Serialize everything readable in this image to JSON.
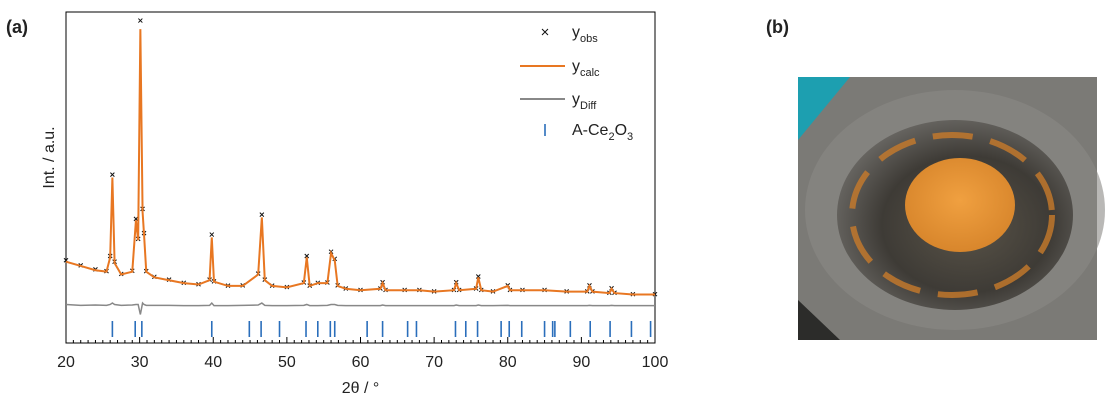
{
  "panel_a": {
    "label": "(a)"
  },
  "panel_b": {
    "label": "(b)"
  },
  "chart_data": {
    "type": "line",
    "xlabel": "2θ / °",
    "ylabel": "Int. / a.u.",
    "xlim": [
      20,
      100
    ],
    "ylim": [
      -16,
      100
    ],
    "xticks": [
      20,
      30,
      40,
      50,
      60,
      70,
      80,
      90,
      100
    ],
    "legend": "upper right",
    "x": [
      20,
      22,
      24,
      25.5,
      26.0,
      26.3,
      26.6,
      27.5,
      29.0,
      29.5,
      29.8,
      30.1,
      30.4,
      30.6,
      30.9,
      32,
      34,
      36,
      38,
      39.5,
      39.8,
      40.1,
      42,
      44,
      46.1,
      46.6,
      47.0,
      48,
      50,
      52.3,
      52.7,
      53.1,
      54.2,
      55.5,
      56.0,
      56.5,
      56.9,
      58,
      60,
      62.7,
      63.0,
      63.4,
      66,
      68,
      70,
      72.7,
      73.0,
      73.4,
      75.7,
      76.0,
      76.4,
      78,
      80.0,
      80.3,
      82,
      85,
      88,
      90.8,
      91.1,
      91.5,
      93.8,
      94.1,
      94.5,
      97,
      100
    ],
    "series": [
      {
        "name": [
          "y",
          "obs"
        ],
        "color": "#111111",
        "marker": "x",
        "values": [
          13,
          11.2,
          9.8,
          9.2,
          14.5,
          43,
          12.5,
          8.2,
          9.3,
          27.5,
          20.5,
          97,
          31,
          22.5,
          9.2,
          7.2,
          6.2,
          5.1,
          4.6,
          6.2,
          22,
          5.6,
          4.1,
          4.2,
          8.3,
          29,
          6.2,
          4.1,
          3.6,
          5.2,
          14.5,
          4.1,
          5.1,
          5.2,
          16,
          13.5,
          4.2,
          3.1,
          2.6,
          3.1,
          5.3,
          2.6,
          2.6,
          2.6,
          2.1,
          2.6,
          5.3,
          2.6,
          3.1,
          7.3,
          2.6,
          2.1,
          4.2,
          2.6,
          2.6,
          2.6,
          2.1,
          2.1,
          4.2,
          2.1,
          1.6,
          3.2,
          1.6,
          1.1,
          1.1
        ]
      },
      {
        "name": [
          "y",
          "calc"
        ],
        "color": "#e87722",
        "values": [
          12.5,
          11,
          9.5,
          9,
          14,
          42,
          12,
          8,
          9,
          27,
          20,
          94,
          30,
          22,
          9,
          7,
          6,
          5,
          4.5,
          6,
          21,
          5.5,
          4,
          4,
          8,
          28,
          6,
          4,
          3.5,
          5,
          14,
          4,
          5,
          5,
          15.5,
          13,
          4,
          3,
          2.5,
          3,
          5,
          2.5,
          2.5,
          2.5,
          2,
          2.5,
          5,
          2.5,
          3,
          7,
          2.5,
          2,
          4,
          2.5,
          2.5,
          2.5,
          2,
          2,
          4,
          2,
          1.5,
          3,
          1.5,
          1,
          1
        ]
      },
      {
        "name": [
          "y",
          "Diff"
        ],
        "color": "#888888",
        "values": [
          -2.5,
          -2.8,
          -2.7,
          -2.8,
          -2.5,
          -2,
          -2.5,
          -2.8,
          -2.7,
          -2.5,
          -2.5,
          -6,
          -2,
          -2.5,
          -2.8,
          -2.8,
          -2.8,
          -2.9,
          -2.9,
          -2.8,
          -2,
          -2.9,
          -2.9,
          -2.8,
          -2.7,
          -2,
          -2.8,
          -2.9,
          -2.9,
          -2.8,
          -2.5,
          -2.9,
          -2.9,
          -2.8,
          -2.5,
          -2.5,
          -2.8,
          -2.9,
          -2.9,
          -2.9,
          -2.7,
          -2.9,
          -2.9,
          -2.9,
          -2.9,
          -2.9,
          -2.7,
          -2.9,
          -2.9,
          -2.7,
          -2.9,
          -2.9,
          -2.8,
          -2.9,
          -2.9,
          -2.9,
          -2.9,
          -2.9,
          -2.8,
          -2.9,
          -2.9,
          -2.8,
          -2.9,
          -2.9,
          -2.9
        ]
      },
      {
        "name": [
          "A-Ce",
          "2",
          "O",
          "3"
        ],
        "color": "#2a6ebb",
        "marker": "tick",
        "x": [
          26.3,
          29.4,
          30.3,
          39.8,
          44.9,
          46.5,
          49.0,
          52.6,
          54.2,
          55.9,
          56.5,
          60.9,
          63.0,
          66.4,
          67.6,
          72.9,
          74.3,
          75.9,
          79.1,
          80.2,
          81.9,
          85.0,
          86.1,
          86.4,
          88.5,
          91.2,
          93.9,
          96.8,
          99.4
        ]
      }
    ]
  }
}
